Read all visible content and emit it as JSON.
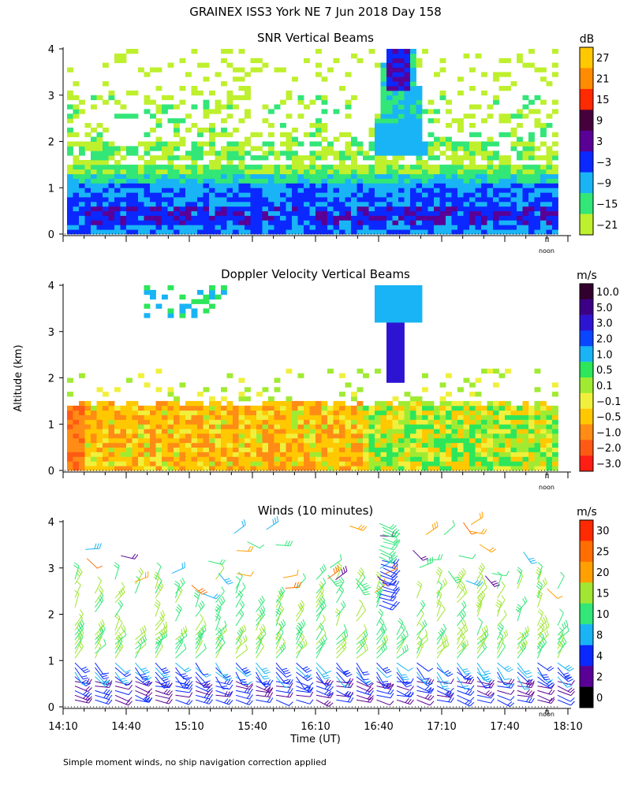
{
  "figure": {
    "title": "GRAINEX ISS3 York NE   7 Jun 2018 Day 158",
    "ylabel": "Altitude (km)",
    "xlabel": "Time (UT)",
    "noon_label": "noon",
    "footnote": "Simple moment winds, no ship navigation correction applied"
  },
  "chart_data": [
    {
      "id": "snr",
      "type": "heatmap",
      "title": "SNR Vertical Beams",
      "units": "dB",
      "ylim": [
        0,
        4
      ],
      "yticks": [
        "0",
        "1",
        "2",
        "3",
        "4"
      ],
      "colorbar": {
        "labels": [
          "27",
          "21",
          "15",
          "9",
          "3",
          "−3",
          "−9",
          "−15",
          "−21"
        ],
        "colors": [
          "#ffc800",
          "#ff8c00",
          "#ff2a00",
          "#46003c",
          "#5a0096",
          "#0a28ff",
          "#19b4f5",
          "#32e678",
          "#bef02d"
        ]
      }
    },
    {
      "id": "doppler",
      "type": "heatmap",
      "title": "Doppler Velocity Vertical Beams",
      "units": "m/s",
      "ylim": [
        0,
        4
      ],
      "yticks": [
        "0",
        "1",
        "2",
        "3",
        "4"
      ],
      "colorbar": {
        "labels": [
          "10.0",
          "5.0",
          "3.0",
          "2.0",
          "1.0",
          "0.5",
          "0.1",
          "−0.1",
          "−0.5",
          "−1.0",
          "−2.0",
          "−3.0"
        ],
        "colors": [
          "#32002d",
          "#3c0087",
          "#2d14d2",
          "#0a46ff",
          "#19b4f5",
          "#2de65a",
          "#a0eb32",
          "#f0f03c",
          "#ffc800",
          "#ff8c14",
          "#ff5a14",
          "#ff1e14"
        ]
      }
    },
    {
      "id": "winds",
      "type": "scatter",
      "title": "Winds (10 minutes)",
      "units": "m/s",
      "ylim": [
        0,
        4
      ],
      "yticks": [
        "0",
        "1",
        "2",
        "3",
        "4"
      ],
      "xticks": [
        "14:10",
        "14:40",
        "15:10",
        "15:40",
        "16:10",
        "16:40",
        "17:10",
        "17:40",
        "18:10"
      ],
      "colorbar": {
        "labels": [
          "30",
          "25",
          "20",
          "15",
          "10",
          "8",
          "4",
          "2",
          "0"
        ],
        "colors": [
          "#ff2a00",
          "#ff6e00",
          "#ffa000",
          "#a0e632",
          "#32e678",
          "#19b4f5",
          "#0a28ff",
          "#5a0096",
          "#000000"
        ]
      }
    }
  ]
}
